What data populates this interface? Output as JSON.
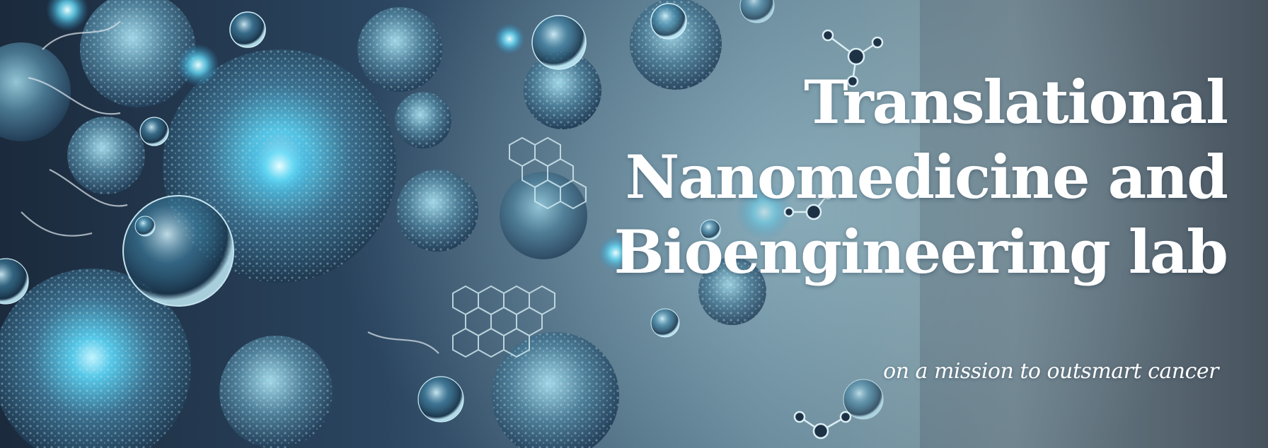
{
  "hero": {
    "title_lines": [
      "Translational",
      "Nanomedicine and",
      "Bioengineering lab"
    ],
    "tagline": "on a mission to outsmart cancer"
  },
  "colors": {
    "background_dark": "#1b2a3c",
    "background_light": "#7d949e",
    "cell_glow": "#5fd3f0",
    "text": "#ffffff"
  }
}
